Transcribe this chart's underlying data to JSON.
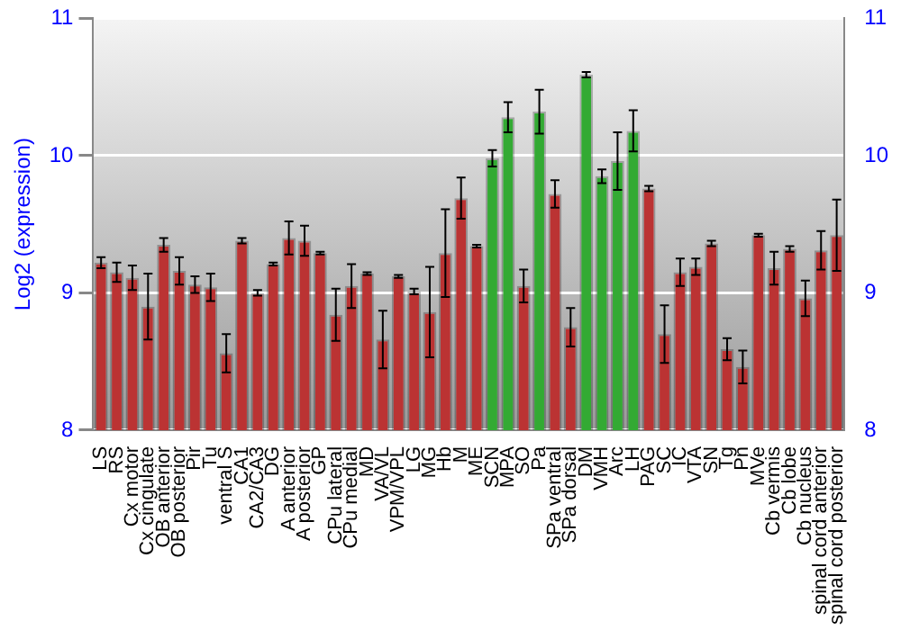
{
  "chart_data": {
    "type": "bar",
    "ylabel": "Log2 (expression)",
    "categories": [
      "LS",
      "RS",
      "Cx motor",
      "Cx cingulate",
      "OB anterior",
      "OB posterior",
      "Pir",
      "Tu",
      "ventral S",
      "CA1",
      "CA2/CA3",
      "DG",
      "A anterior",
      "A posterior",
      "GP",
      "CPu lateral",
      "CPu medial",
      "MD",
      "VA/VL",
      "VPM/VPL",
      "LG",
      "MG",
      "Hb",
      "M",
      "ME",
      "SCN",
      "MPA",
      "SO",
      "Pa",
      "SPa ventral",
      "SPa dorsal",
      "DM",
      "VMH",
      "Arc",
      "LH",
      "PAG",
      "SC",
      "IC",
      "VTA",
      "SN",
      "Tg",
      "Pn",
      "MVe",
      "Cb vermis",
      "Cb lobe",
      "Cb nucleus",
      "spinal cord anterior",
      "spinal cord posterior"
    ],
    "values": [
      9.22,
      9.15,
      9.11,
      8.9,
      9.35,
      9.16,
      9.06,
      9.04,
      8.56,
      9.38,
      9.0,
      9.21,
      9.4,
      9.38,
      9.29,
      8.84,
      9.05,
      9.14,
      8.66,
      9.12,
      9.01,
      8.86,
      9.29,
      9.69,
      9.34,
      9.98,
      10.28,
      9.05,
      10.32,
      9.72,
      8.75,
      10.59,
      9.85,
      9.96,
      10.18,
      9.76,
      8.7,
      9.15,
      9.19,
      9.36,
      8.59,
      8.46,
      9.42,
      9.18,
      9.32,
      8.96,
      9.31,
      9.42
    ],
    "errors": [
      0.04,
      0.07,
      0.09,
      0.24,
      0.05,
      0.1,
      0.06,
      0.1,
      0.14,
      0.02,
      0.02,
      0.01,
      0.12,
      0.11,
      0.01,
      0.19,
      0.16,
      0.01,
      0.21,
      0.01,
      0.02,
      0.33,
      0.32,
      0.15,
      0.01,
      0.06,
      0.11,
      0.12,
      0.16,
      0.1,
      0.14,
      0.02,
      0.05,
      0.21,
      0.15,
      0.02,
      0.21,
      0.1,
      0.06,
      0.02,
      0.08,
      0.12,
      0.01,
      0.12,
      0.02,
      0.13,
      0.14,
      0.26
    ],
    "colors": [
      "#bb3333",
      "#bb3333",
      "#bb3333",
      "#bb3333",
      "#bb3333",
      "#bb3333",
      "#bb3333",
      "#bb3333",
      "#bb3333",
      "#bb3333",
      "#bb3333",
      "#bb3333",
      "#bb3333",
      "#bb3333",
      "#bb3333",
      "#bb3333",
      "#bb3333",
      "#bb3333",
      "#bb3333",
      "#bb3333",
      "#bb3333",
      "#bb3333",
      "#bb3333",
      "#bb3333",
      "#bb3333",
      "#33aa33",
      "#33aa33",
      "#bb3333",
      "#33aa33",
      "#bb3333",
      "#bb3333",
      "#33aa33",
      "#33aa33",
      "#33aa33",
      "#33aa33",
      "#bb3333",
      "#bb3333",
      "#bb3333",
      "#bb3333",
      "#bb3333",
      "#bb3333",
      "#bb3333",
      "#bb3333",
      "#bb3333",
      "#bb3333",
      "#bb3333",
      "#bb3333",
      "#bb3333"
    ],
    "ylim": [
      8,
      11
    ],
    "yticks": [
      8,
      9,
      10,
      11
    ],
    "y2lim": [
      8,
      11
    ],
    "y2ticks": [
      8,
      9,
      10,
      11
    ],
    "grid": "y",
    "legend": false
  }
}
